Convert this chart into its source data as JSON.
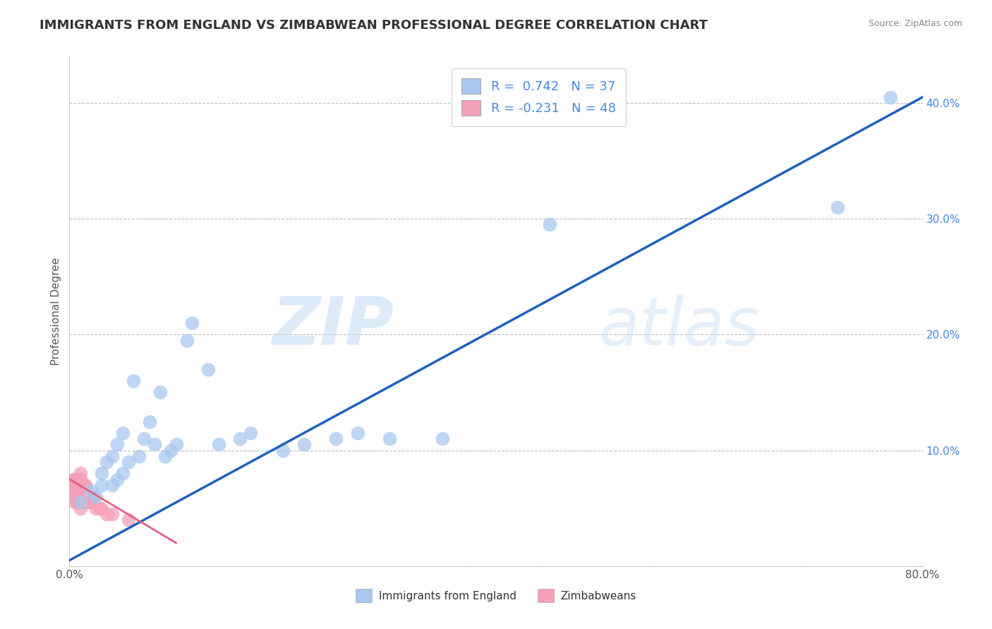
{
  "title": "IMMIGRANTS FROM ENGLAND VS ZIMBABWEAN PROFESSIONAL DEGREE CORRELATION CHART",
  "source": "Source: ZipAtlas.com",
  "xlabel_label": "Immigrants from England",
  "xlabel2_label": "Zimbabweans",
  "ylabel_label": "Professional Degree",
  "watermark_zip": "ZIP",
  "watermark_atlas": "atlas",
  "xlim": [
    0.0,
    0.8
  ],
  "ylim": [
    0.0,
    0.44
  ],
  "xticks": [
    0.0,
    0.1,
    0.2,
    0.3,
    0.4,
    0.5,
    0.6,
    0.7,
    0.8
  ],
  "yticks": [
    0.0,
    0.1,
    0.2,
    0.3,
    0.4
  ],
  "legend_blue_r": "0.742",
  "legend_blue_n": "37",
  "legend_pink_r": "-0.231",
  "legend_pink_n": "48",
  "blue_color": "#A8C8F0",
  "pink_color": "#F4A0B8",
  "blue_line_color": "#2060C0",
  "pink_line_color": "#E06080",
  "grid_color": "#BBBBBB",
  "background_color": "#FFFFFF",
  "title_color": "#333333",
  "axis_color": "#4488DD",
  "blue_scatter_x": [
    0.01,
    0.02,
    0.025,
    0.03,
    0.03,
    0.035,
    0.04,
    0.04,
    0.045,
    0.045,
    0.05,
    0.05,
    0.055,
    0.06,
    0.065,
    0.07,
    0.075,
    0.08,
    0.085,
    0.09,
    0.095,
    0.1,
    0.11,
    0.115,
    0.13,
    0.14,
    0.16,
    0.17,
    0.2,
    0.22,
    0.25,
    0.27,
    0.3,
    0.35,
    0.45,
    0.72,
    0.77
  ],
  "blue_scatter_y": [
    0.055,
    0.065,
    0.06,
    0.07,
    0.08,
    0.09,
    0.07,
    0.095,
    0.075,
    0.105,
    0.08,
    0.115,
    0.09,
    0.16,
    0.095,
    0.11,
    0.125,
    0.105,
    0.15,
    0.095,
    0.1,
    0.105,
    0.195,
    0.21,
    0.17,
    0.105,
    0.11,
    0.115,
    0.1,
    0.105,
    0.11,
    0.115,
    0.11,
    0.11,
    0.295,
    0.31,
    0.405
  ],
  "pink_scatter_x": [
    0.002,
    0.003,
    0.003,
    0.004,
    0.004,
    0.005,
    0.005,
    0.005,
    0.006,
    0.006,
    0.007,
    0.007,
    0.007,
    0.008,
    0.008,
    0.008,
    0.009,
    0.009,
    0.009,
    0.01,
    0.01,
    0.01,
    0.01,
    0.01,
    0.011,
    0.011,
    0.012,
    0.012,
    0.013,
    0.013,
    0.014,
    0.014,
    0.015,
    0.015,
    0.016,
    0.016,
    0.017,
    0.018,
    0.019,
    0.02,
    0.021,
    0.022,
    0.025,
    0.028,
    0.03,
    0.035,
    0.04,
    0.055
  ],
  "pink_scatter_y": [
    0.06,
    0.065,
    0.07,
    0.06,
    0.075,
    0.055,
    0.065,
    0.075,
    0.06,
    0.07,
    0.055,
    0.065,
    0.075,
    0.055,
    0.065,
    0.075,
    0.055,
    0.065,
    0.075,
    0.05,
    0.06,
    0.07,
    0.075,
    0.08,
    0.06,
    0.07,
    0.055,
    0.07,
    0.06,
    0.07,
    0.055,
    0.07,
    0.06,
    0.07,
    0.055,
    0.065,
    0.06,
    0.055,
    0.06,
    0.055,
    0.055,
    0.06,
    0.05,
    0.05,
    0.05,
    0.045,
    0.045,
    0.04
  ],
  "title_fontsize": 13,
  "axis_label_fontsize": 11,
  "tick_fontsize": 11,
  "legend_fontsize": 13
}
